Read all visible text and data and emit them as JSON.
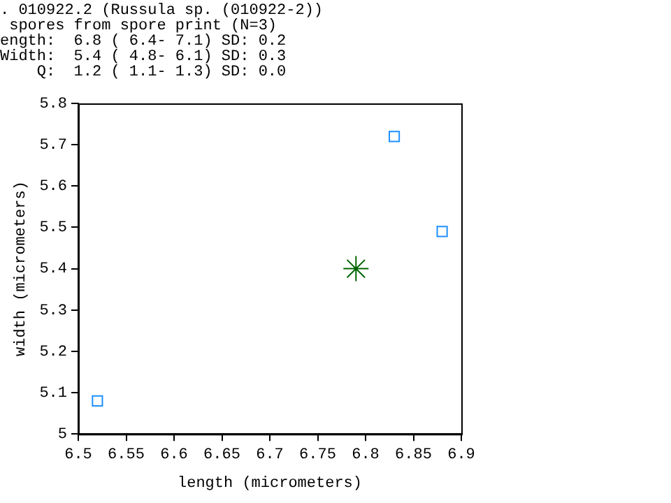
{
  "chart_data": {
    "type": "scatter",
    "title": ". 010922.2 (Russula sp. (010922-2))",
    "subtitle": " spores from spore print (N=3)",
    "annotations": [
      "ength:  6.8 ( 6.4- 7.1) SD: 0.2",
      "Width:  5.4 ( 4.8- 6.1) SD: 0.3",
      "    Q:  1.2 ( 1.1- 1.3) SD: 0.0"
    ],
    "xlabel": "length (micrometers)",
    "ylabel": "width (micrometers)",
    "series": [
      {
        "color": "#1e90ff",
        "marker": "square",
        "x": [
          6.52,
          6.83,
          6.88
        ],
        "values": [
          5.08,
          5.72,
          5.49
        ]
      },
      {
        "color": "#006400",
        "marker": "cross",
        "x": [
          6.79
        ],
        "values": [
          5.4
        ]
      }
    ],
    "xlim": [
      6.5,
      6.9
    ],
    "xticks": [
      6.5,
      6.55,
      6.6,
      6.65,
      6.7,
      6.75,
      6.8,
      6.85,
      6.9
    ],
    "ylim": [
      5,
      5.8
    ],
    "yticks": [
      5,
      5.1,
      5.2,
      5.3,
      5.4,
      5.5,
      5.6,
      5.7,
      5.8
    ],
    "grid": false,
    "legend": false
  }
}
